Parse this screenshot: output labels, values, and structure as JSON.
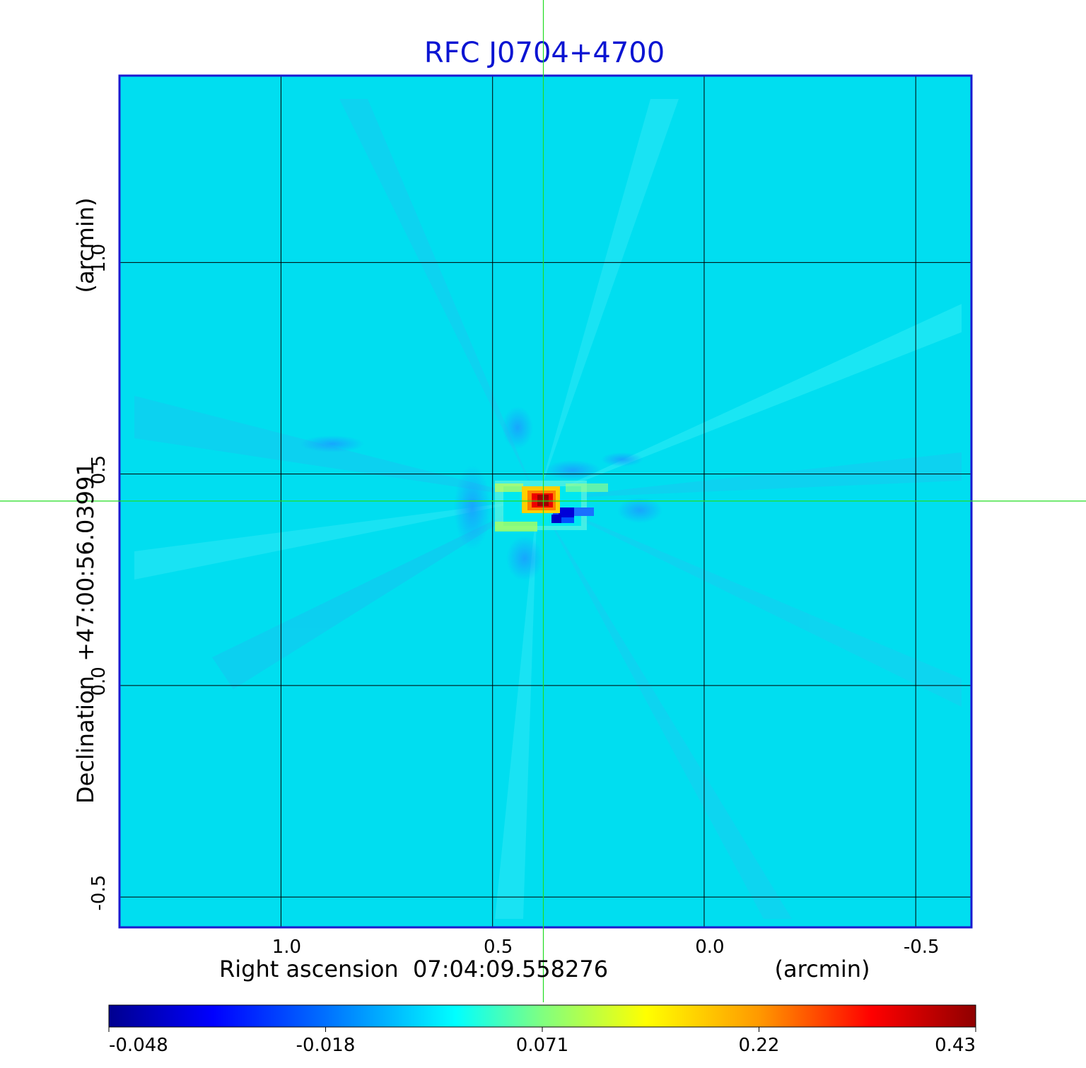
{
  "chart_data": {
    "type": "heatmap",
    "title": "RFC J0704+4700",
    "xlabel": "Right ascension  07:04:09.558276",
    "xunit": "(arcmin)",
    "ylabel": "Declination  +47:00:56.03991",
    "yunit": "(arcmin)",
    "xlim": [
      1.38,
      -0.63
    ],
    "ylim": [
      -0.57,
      1.44
    ],
    "x_ticks": [
      1.0,
      0.5,
      0.0,
      -0.5
    ],
    "x_tick_labels": [
      "1.0",
      "0.5",
      "0.0",
      "-0.5"
    ],
    "y_ticks": [
      -0.5,
      0.0,
      0.5,
      1.0
    ],
    "y_tick_labels": [
      "-0.5",
      "0.0",
      "0.5",
      "1.0"
    ],
    "grid": true,
    "crosshair": {
      "x": 0.38,
      "y": 0.436
    },
    "colorbar": {
      "ticks": [
        -0.048,
        -0.018,
        0.071,
        0.22,
        0.43
      ],
      "tick_labels": [
        "-0.048",
        "-0.018",
        "0.071",
        "0.22",
        "0.43"
      ],
      "colormap": "jet"
    },
    "background_level": -0.005,
    "peak_value": 0.43,
    "colors": {
      "title": "#0a14d2",
      "frame": "#1a1ad0",
      "grid": "#000000",
      "crosshair": "#22dd22",
      "background": "#00e0f0"
    }
  }
}
